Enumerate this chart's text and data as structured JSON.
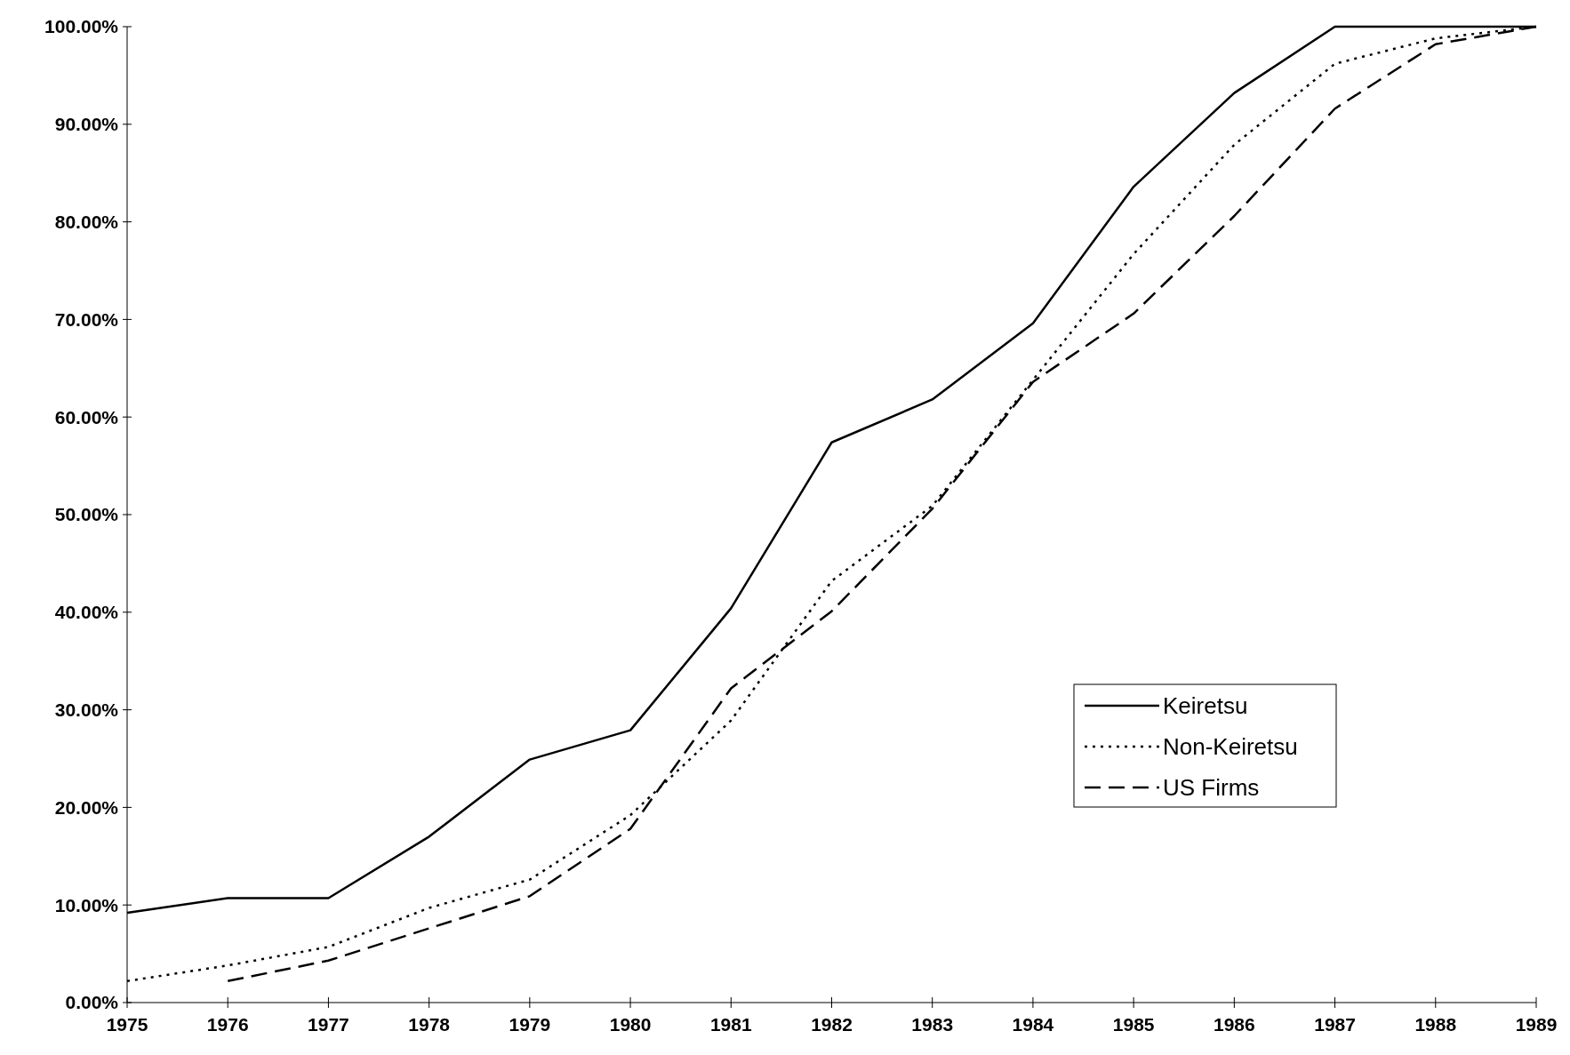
{
  "chart_data": {
    "type": "line",
    "x": [
      1975,
      1976,
      1977,
      1978,
      1979,
      1980,
      1981,
      1982,
      1983,
      1984,
      1985,
      1986,
      1987,
      1988,
      1989
    ],
    "series": [
      {
        "name": "Keiretsu",
        "color": "#000000",
        "line_style": "solid",
        "values": [
          9.2,
          10.7,
          10.7,
          17.0,
          24.9,
          27.9,
          40.4,
          57.4,
          61.8,
          69.6,
          83.6,
          93.2,
          100,
          100,
          100
        ]
      },
      {
        "name": "Non-Keiretsu",
        "color": "#000000",
        "line_style": "dotted",
        "values": [
          2.2,
          3.8,
          5.7,
          9.7,
          12.6,
          19.2,
          28.9,
          43.2,
          50.9,
          63.8,
          76.7,
          87.9,
          96.2,
          98.8,
          100
        ]
      },
      {
        "name": "US Firms",
        "color": "#000000",
        "line_style": "dashed",
        "values": [
          null,
          2.2,
          4.3,
          7.6,
          10.9,
          17.8,
          32.2,
          40.1,
          50.6,
          63.6,
          70.6,
          80.6,
          91.6,
          98.2,
          100
        ]
      }
    ],
    "xlim": [
      1975,
      1989
    ],
    "xticks": [
      1975,
      1976,
      1977,
      1978,
      1979,
      1980,
      1981,
      1982,
      1983,
      1984,
      1985,
      1986,
      1987,
      1988,
      1989
    ],
    "ylim": [
      0,
      100
    ],
    "yticks": [
      {
        "value": 0,
        "label": "0.00%"
      },
      {
        "value": 10,
        "label": "10.00%"
      },
      {
        "value": 20,
        "label": "20.00%"
      },
      {
        "value": 30,
        "label": "30.00%"
      },
      {
        "value": 40,
        "label": "40.00%"
      },
      {
        "value": 50,
        "label": "50.00%"
      },
      {
        "value": 60,
        "label": "60.00%"
      },
      {
        "value": 70,
        "label": "70.00%"
      },
      {
        "value": 80,
        "label": "80.00%"
      },
      {
        "value": 90,
        "label": "90.00%"
      },
      {
        "value": 100,
        "label": "100.00%"
      }
    ],
    "legend": "right",
    "grid": false
  }
}
